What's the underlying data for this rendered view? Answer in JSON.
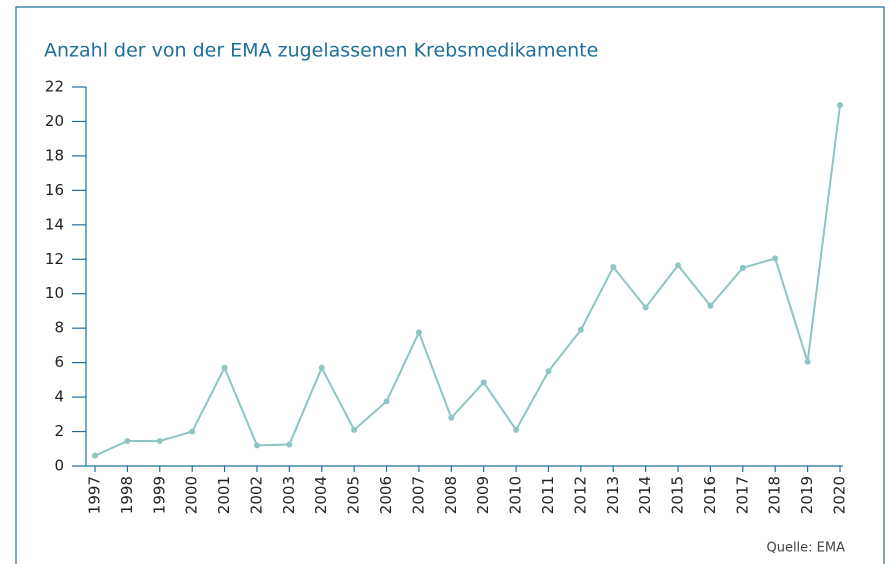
{
  "chart_data": {
    "type": "line",
    "title": "Anzahl der von der EMA zugelassenen Krebsmedikamente",
    "source": "Quelle: EMA",
    "categories": [
      "1997",
      "1998",
      "1999",
      "2000",
      "2001",
      "2002",
      "2003",
      "2004",
      "2005",
      "2006",
      "2007",
      "2008",
      "2009",
      "2010",
      "2011",
      "2012",
      "2013",
      "2014",
      "2015",
      "2016",
      "2017",
      "2018",
      "2019",
      "2020"
    ],
    "series": [
      {
        "color": "#8ec4c4",
        "values": [
          0.6,
          1.45,
          1.45,
          2.0,
          5.7,
          1.2,
          1.25,
          5.7,
          2.1,
          3.75,
          7.75,
          2.8,
          4.85,
          2.1,
          5.5,
          7.9,
          11.55,
          9.2,
          11.65,
          9.3,
          11.5,
          12.05,
          6.05,
          20.95
        ]
      }
    ],
    "ylim": [
      0,
      22
    ],
    "yticks": [
      0,
      2,
      4,
      6,
      8,
      10,
      12,
      14,
      16,
      18,
      20,
      22
    ]
  }
}
